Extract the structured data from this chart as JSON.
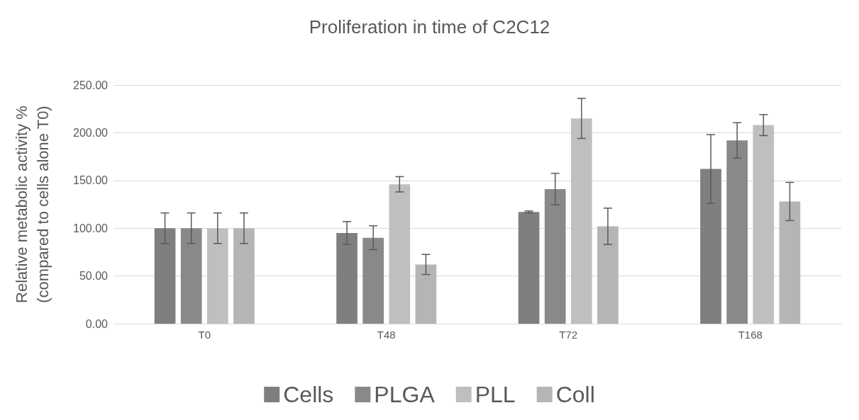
{
  "chart_data": {
    "type": "bar",
    "title": "Proliferation in time of C2C12",
    "ylabel": "Relative metabolic activity %\n(compared to cells alone T0)",
    "categories": [
      "T0",
      "T48",
      "T72",
      "T168"
    ],
    "series": [
      {
        "name": "Cells",
        "color": "#7f7f7f",
        "values": [
          100,
          95,
          117,
          162
        ],
        "errors": [
          16,
          12,
          1,
          36
        ]
      },
      {
        "name": "PLGA",
        "color": "#898989",
        "values": [
          100,
          90,
          141,
          192
        ],
        "errors": [
          16,
          12.5,
          16.5,
          18.5
        ]
      },
      {
        "name": "PLL",
        "color": "#bfbfbf",
        "values": [
          100,
          146,
          215,
          208
        ],
        "errors": [
          16,
          8,
          21,
          11
        ]
      },
      {
        "name": "Coll",
        "color": "#b5b5b5",
        "values": [
          100,
          62,
          102,
          128
        ],
        "errors": [
          16,
          10.5,
          19,
          20
        ]
      }
    ],
    "ylim": [
      0,
      250
    ],
    "yticks": [
      {
        "value": 0,
        "label": "0.00"
      },
      {
        "value": 50,
        "label": "50.00"
      },
      {
        "value": 100,
        "label": "100.00"
      },
      {
        "value": 150,
        "label": "150.00"
      },
      {
        "value": 200,
        "label": "200.00"
      },
      {
        "value": 250,
        "label": "250.00"
      }
    ],
    "grid": "y",
    "legend": "bottom"
  }
}
